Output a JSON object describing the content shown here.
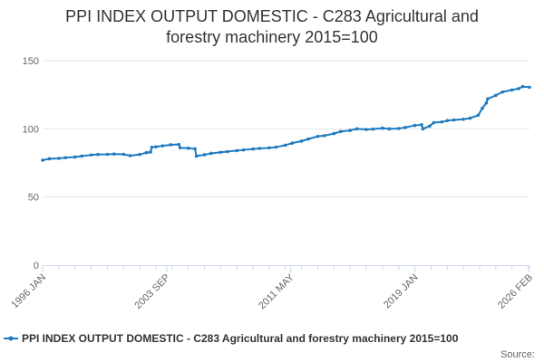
{
  "chart_data": {
    "type": "line",
    "title": "PPI INDEX OUTPUT DOMESTIC - C283 Agricultural and forestry machinery 2015=100",
    "title_lines": [
      "PPI INDEX OUTPUT DOMESTIC - C283 Agricultural and",
      "forestry machinery 2015=100"
    ],
    "xlabel": "",
    "ylabel": "",
    "x_axis": {
      "type": "date",
      "range": [
        "1996-01",
        "2026-02"
      ],
      "tick_labels": [
        "1996 JAN",
        "2003 SEP",
        "2011 MAY",
        "2019 JAN",
        "2026 FEB"
      ],
      "tick_values": [
        "1996-01",
        "2003-09",
        "2011-05",
        "2019-01",
        "2026-02"
      ]
    },
    "y_axis": {
      "range": [
        0,
        150
      ],
      "tick_values": [
        0,
        50,
        100,
        150
      ],
      "tick_labels": [
        "0",
        "50",
        "100",
        "150"
      ]
    },
    "grid": "horizontal",
    "legend_position": "bottom",
    "source_label": "Source:",
    "colors": {
      "series": "#1f7bbf",
      "grid": "#e6e6e6",
      "axis": "#ccd6eb"
    },
    "series": [
      {
        "name": "PPI INDEX OUTPUT DOMESTIC - C283 Agricultural and forestry machinery 2015=100",
        "points": [
          [
            "1996-01",
            77.0
          ],
          [
            "1996-06",
            78.0
          ],
          [
            "1997-01",
            78.3
          ],
          [
            "1997-06",
            78.8
          ],
          [
            "1998-01",
            79.3
          ],
          [
            "1998-06",
            80.0
          ],
          [
            "1999-01",
            80.8
          ],
          [
            "1999-06",
            81.2
          ],
          [
            "2000-01",
            81.3
          ],
          [
            "2000-06",
            81.5
          ],
          [
            "2001-01",
            81.3
          ],
          [
            "2001-06",
            80.3
          ],
          [
            "2002-01",
            81.2
          ],
          [
            "2002-06",
            82.5
          ],
          [
            "2002-09",
            83.0
          ],
          [
            "2002-10",
            86.5
          ],
          [
            "2003-01",
            86.8
          ],
          [
            "2003-06",
            87.5
          ],
          [
            "2003-12",
            88.3
          ],
          [
            "2004-06",
            88.5
          ],
          [
            "2004-07",
            86.0
          ],
          [
            "2005-01",
            85.8
          ],
          [
            "2005-06",
            85.3
          ],
          [
            "2005-07",
            80.0
          ],
          [
            "2006-01",
            81.0
          ],
          [
            "2006-06",
            82.0
          ],
          [
            "2007-01",
            82.8
          ],
          [
            "2007-06",
            83.3
          ],
          [
            "2008-01",
            84.0
          ],
          [
            "2008-06",
            84.5
          ],
          [
            "2009-01",
            85.2
          ],
          [
            "2009-06",
            85.6
          ],
          [
            "2010-01",
            86.0
          ],
          [
            "2010-06",
            86.5
          ],
          [
            "2011-01",
            88.0
          ],
          [
            "2011-06",
            89.5
          ],
          [
            "2012-01",
            91.0
          ],
          [
            "2012-06",
            92.5
          ],
          [
            "2013-01",
            94.5
          ],
          [
            "2013-06",
            95.0
          ],
          [
            "2014-01",
            96.5
          ],
          [
            "2014-06",
            98.0
          ],
          [
            "2015-01",
            98.8
          ],
          [
            "2015-06",
            100.0
          ],
          [
            "2016-01",
            99.5
          ],
          [
            "2016-06",
            99.8
          ],
          [
            "2017-01",
            100.5
          ],
          [
            "2017-06",
            100.0
          ],
          [
            "2018-01",
            100.2
          ],
          [
            "2018-06",
            101.0
          ],
          [
            "2019-01",
            102.5
          ],
          [
            "2019-06",
            103.0
          ],
          [
            "2019-07",
            100.0
          ],
          [
            "2019-12",
            102.0
          ],
          [
            "2020-03",
            104.5
          ],
          [
            "2020-09",
            105.0
          ],
          [
            "2021-01",
            106.0
          ],
          [
            "2021-06",
            106.5
          ],
          [
            "2022-01",
            107.0
          ],
          [
            "2022-06",
            107.8
          ],
          [
            "2022-12",
            110.0
          ],
          [
            "2023-03",
            115.0
          ],
          [
            "2023-06",
            119.0
          ],
          [
            "2023-07",
            122.0
          ],
          [
            "2024-01",
            124.5
          ],
          [
            "2024-06",
            127.0
          ],
          [
            "2025-01",
            128.5
          ],
          [
            "2025-06",
            129.5
          ],
          [
            "2025-09",
            131.0
          ],
          [
            "2026-02",
            130.5
          ]
        ]
      }
    ]
  }
}
